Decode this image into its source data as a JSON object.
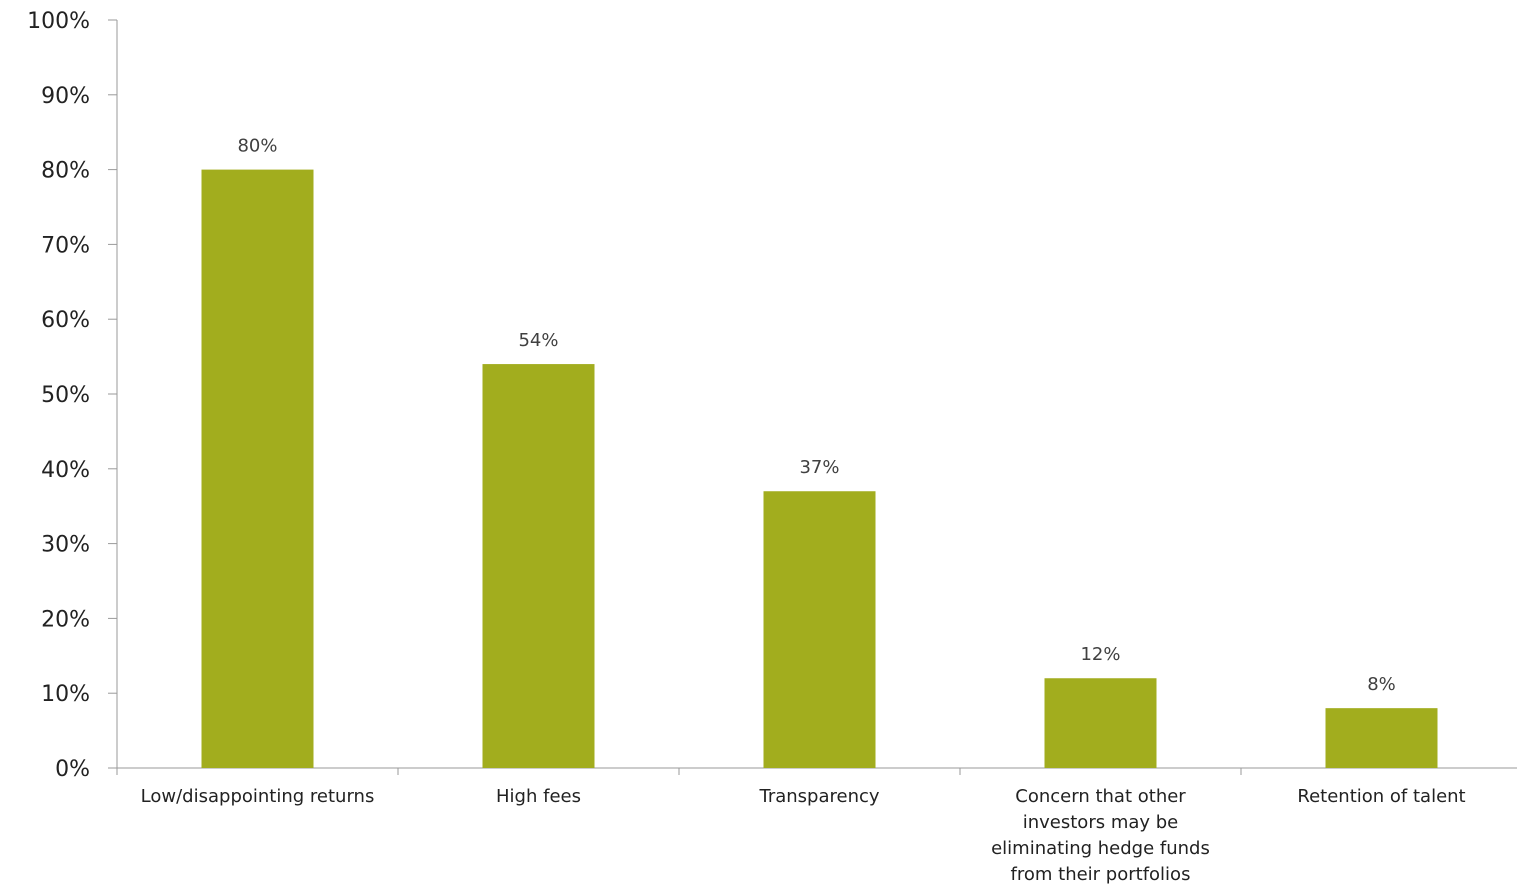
{
  "chart_data": {
    "type": "bar",
    "categories": [
      [
        "Low/disappointing returns"
      ],
      [
        "High fees"
      ],
      [
        "Transparency"
      ],
      [
        "Concern that other",
        "investors may be",
        "eliminating hedge funds",
        "from their portfolios"
      ],
      [
        "Retention of talent"
      ]
    ],
    "values": [
      80,
      54,
      37,
      12,
      8
    ],
    "data_labels": [
      "80%",
      "54%",
      "37%",
      "12%",
      "8%"
    ],
    "y_ticks": [
      "0%",
      "10%",
      "20%",
      "30%",
      "40%",
      "50%",
      "60%",
      "70%",
      "80%",
      "90%",
      "100%"
    ],
    "ylim": [
      0,
      100
    ],
    "grid": false,
    "colors": {
      "bar": "#a2ad1e"
    }
  }
}
